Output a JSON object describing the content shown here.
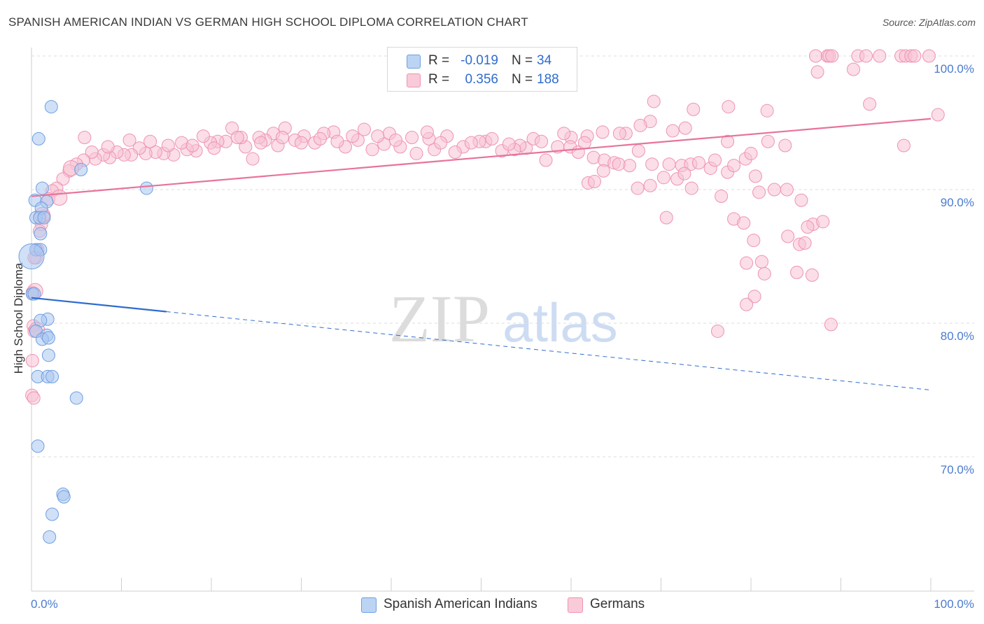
{
  "title": "SPANISH AMERICAN INDIAN VS GERMAN HIGH SCHOOL DIPLOMA CORRELATION CHART",
  "source": "Source: ZipAtlas.com",
  "watermark": {
    "zip": "ZIP",
    "atlas": "atlas"
  },
  "legend": {
    "r_label": "R =",
    "n_label": "N =",
    "rows": [
      {
        "name": "Spanish American Indians",
        "r": "-0.019",
        "n": "34",
        "color": "#8fb6ea"
      },
      {
        "name": "Germans",
        "r": "0.356",
        "n": "188",
        "color": "#f2a7c0"
      }
    ]
  },
  "colors": {
    "blue_fill": "#a9c7f0",
    "blue_stroke": "#6e9fe0",
    "blue_line": "#2f6ccf",
    "pink_fill": "#f7c3d3",
    "pink_stroke": "#ee93b1",
    "pink_line": "#e8739a",
    "grid": "#dddddd",
    "tick_text": "#4a7bd0"
  },
  "chart_data": {
    "type": "scatter",
    "title": "SPANISH AMERICAN INDIAN VS GERMAN HIGH SCHOOL DIPLOMA CORRELATION CHART",
    "xlabel": "",
    "ylabel": "High School Diploma",
    "xlim": [
      0,
      100
    ],
    "ylim": [
      60.5,
      101.5
    ],
    "x_tick_labels": {
      "left": "0.0%",
      "right": "100.0%"
    },
    "y_ticks": [
      {
        "value": 100,
        "label": "100.0%"
      },
      {
        "value": 90,
        "label": "90.0%"
      },
      {
        "value": 80,
        "label": "80.0%"
      },
      {
        "value": 70,
        "label": "70.0%"
      }
    ],
    "series": [
      {
        "name": "Spanish American Indians",
        "r": -0.019,
        "n": 34,
        "trend": {
          "x0": 0,
          "y0": 81.9,
          "x1": 100,
          "y1": 75.0,
          "solid_until_x": 15
        },
        "points": [
          [
            2.2,
            96.2,
            9
          ],
          [
            0.8,
            93.8,
            9
          ],
          [
            5.5,
            91.5,
            9
          ],
          [
            12.8,
            90.1,
            9
          ],
          [
            1.2,
            90.1,
            9
          ],
          [
            0.4,
            89.2,
            9
          ],
          [
            1.7,
            89.1,
            9
          ],
          [
            1.1,
            88.6,
            9
          ],
          [
            0.5,
            87.9,
            9
          ],
          [
            0.9,
            87.9,
            9
          ],
          [
            1.4,
            87.9,
            9
          ],
          [
            1.0,
            86.7,
            9
          ],
          [
            0.5,
            85.5,
            9
          ],
          [
            1.0,
            85.5,
            9
          ],
          [
            0.0,
            85.0,
            18
          ],
          [
            0.1,
            82.2,
            9
          ],
          [
            0.3,
            82.2,
            9
          ],
          [
            1.8,
            80.3,
            9
          ],
          [
            1.0,
            80.2,
            9
          ],
          [
            0.5,
            79.4,
            9
          ],
          [
            1.7,
            79.1,
            9
          ],
          [
            1.2,
            78.8,
            9
          ],
          [
            1.9,
            78.9,
            9
          ],
          [
            1.9,
            77.6,
            9
          ],
          [
            0.7,
            76.0,
            9
          ],
          [
            1.8,
            76.0,
            9
          ],
          [
            2.3,
            76.0,
            9
          ],
          [
            5.0,
            74.4,
            9
          ],
          [
            0.7,
            70.8,
            9
          ],
          [
            3.5,
            67.2,
            9
          ],
          [
            3.6,
            67.0,
            9
          ],
          [
            2.3,
            65.7,
            9
          ],
          [
            2.0,
            64.0,
            9
          ]
        ]
      },
      {
        "name": "Germans",
        "r": 0.356,
        "n": 188,
        "trend": {
          "x0": 0,
          "y0": 89.5,
          "x1": 100,
          "y1": 95.3
        },
        "points": [
          [
            87.2,
            100,
            9
          ],
          [
            88.5,
            100,
            9
          ],
          [
            88.7,
            100,
            9
          ],
          [
            89.0,
            100,
            9
          ],
          [
            91.9,
            100,
            9
          ],
          [
            92.8,
            100,
            9
          ],
          [
            94.3,
            100,
            9
          ],
          [
            96.7,
            100,
            9
          ],
          [
            97.2,
            100,
            9
          ],
          [
            97.8,
            100,
            9
          ],
          [
            98.2,
            100,
            9
          ],
          [
            99.8,
            100,
            9
          ],
          [
            87.4,
            98.8,
            9
          ],
          [
            91.4,
            99.0,
            9
          ],
          [
            93.2,
            96.4,
            9
          ],
          [
            100.8,
            95.6,
            9
          ],
          [
            69.2,
            96.6,
            9
          ],
          [
            73.6,
            96.0,
            9
          ],
          [
            77.5,
            96.2,
            9
          ],
          [
            81.8,
            95.9,
            9
          ],
          [
            68.8,
            95.1,
            9
          ],
          [
            67.7,
            94.8,
            9
          ],
          [
            66.1,
            94.2,
            9
          ],
          [
            71.3,
            94.4,
            9
          ],
          [
            72.7,
            94.6,
            9
          ],
          [
            77.4,
            93.6,
            9
          ],
          [
            81.9,
            93.6,
            9
          ],
          [
            83.8,
            93.3,
            9
          ],
          [
            97.0,
            93.3,
            9
          ],
          [
            65.4,
            94.2,
            9
          ],
          [
            63.5,
            94.3,
            9
          ],
          [
            61.8,
            94.0,
            9
          ],
          [
            60.0,
            93.9,
            9
          ],
          [
            59.2,
            94.2,
            9
          ],
          [
            58.5,
            93.2,
            9
          ],
          [
            57.2,
            92.2,
            9
          ],
          [
            55.0,
            93.1,
            9
          ],
          [
            54.3,
            93.3,
            9
          ],
          [
            53.7,
            93.0,
            9
          ],
          [
            52.3,
            92.9,
            9
          ],
          [
            50.5,
            93.6,
            9
          ],
          [
            49.8,
            93.6,
            9
          ],
          [
            48.0,
            93.2,
            9
          ],
          [
            47.1,
            92.8,
            9
          ],
          [
            46.2,
            94.0,
            9
          ],
          [
            44.8,
            93.0,
            9
          ],
          [
            44.2,
            93.8,
            9
          ],
          [
            42.8,
            92.7,
            9
          ],
          [
            41.0,
            93.2,
            9
          ],
          [
            39.8,
            94.2,
            9
          ],
          [
            39.2,
            93.4,
            9
          ],
          [
            37.9,
            93.0,
            9
          ],
          [
            37.0,
            94.5,
            9
          ],
          [
            36.3,
            93.7,
            9
          ],
          [
            34.9,
            93.2,
            9
          ],
          [
            33.6,
            94.3,
            9
          ],
          [
            32.5,
            94.2,
            9
          ],
          [
            31.5,
            93.5,
            9
          ],
          [
            30.3,
            94.0,
            9
          ],
          [
            29.3,
            93.7,
            9
          ],
          [
            28.2,
            94.6,
            9
          ],
          [
            27.4,
            93.3,
            9
          ],
          [
            26.9,
            94.2,
            9
          ],
          [
            26.0,
            93.7,
            9
          ],
          [
            25.3,
            93.9,
            9
          ],
          [
            24.6,
            92.3,
            9
          ],
          [
            23.8,
            93.2,
            9
          ],
          [
            23.3,
            93.9,
            9
          ],
          [
            22.3,
            94.6,
            9
          ],
          [
            21.6,
            93.6,
            9
          ],
          [
            20.7,
            93.6,
            9
          ],
          [
            19.9,
            93.5,
            9
          ],
          [
            19.1,
            94.0,
            9
          ],
          [
            18.3,
            92.9,
            9
          ],
          [
            17.3,
            93.0,
            9
          ],
          [
            16.7,
            93.5,
            9
          ],
          [
            15.8,
            92.6,
            9
          ],
          [
            14.7,
            92.7,
            9
          ],
          [
            13.8,
            92.8,
            9
          ],
          [
            12.7,
            92.7,
            9
          ],
          [
            12.0,
            93.1,
            9
          ],
          [
            11.1,
            92.6,
            9
          ],
          [
            10.3,
            92.6,
            9
          ],
          [
            9.5,
            92.8,
            9
          ],
          [
            8.7,
            92.4,
            9
          ],
          [
            8.0,
            92.6,
            9
          ],
          [
            7.1,
            92.3,
            9
          ],
          [
            6.7,
            92.8,
            9
          ],
          [
            5.8,
            92.2,
            9
          ],
          [
            5.0,
            91.9,
            9
          ],
          [
            4.2,
            91.4,
            9
          ],
          [
            3.5,
            90.8,
            9
          ],
          [
            2.8,
            90.1,
            9
          ],
          [
            2.3,
            89.9,
            9
          ],
          [
            1.9,
            89.3,
            9
          ],
          [
            1.4,
            88.0,
            9
          ],
          [
            1.1,
            87.4,
            9
          ],
          [
            0.9,
            86.9,
            9
          ],
          [
            0.7,
            85.5,
            9
          ],
          [
            0.5,
            84.9,
            9
          ],
          [
            0.3,
            84.9,
            9
          ],
          [
            0.1,
            82.3,
            9
          ],
          [
            0.2,
            79.8,
            9
          ],
          [
            0.3,
            79.4,
            9
          ],
          [
            0.1,
            77.2,
            9
          ],
          [
            0.05,
            74.6,
            9
          ],
          [
            0.25,
            74.4,
            9
          ],
          [
            5.9,
            93.9,
            9
          ],
          [
            8.5,
            93.2,
            9
          ],
          [
            10.9,
            93.7,
            9
          ],
          [
            13.2,
            93.6,
            9
          ],
          [
            15.2,
            93.3,
            9
          ],
          [
            17.9,
            93.3,
            9
          ],
          [
            20.3,
            93.1,
            9
          ],
          [
            22.9,
            93.9,
            9
          ],
          [
            25.5,
            93.5,
            9
          ],
          [
            27.9,
            93.9,
            9
          ],
          [
            30.0,
            93.5,
            9
          ],
          [
            32.1,
            93.8,
            9
          ],
          [
            34.0,
            93.6,
            9
          ],
          [
            35.7,
            94.0,
            9
          ],
          [
            38.5,
            94.0,
            9
          ],
          [
            40.5,
            93.7,
            9
          ],
          [
            42.3,
            93.9,
            9
          ],
          [
            44.0,
            94.3,
            9
          ],
          [
            45.5,
            93.5,
            9
          ],
          [
            48.9,
            93.5,
            9
          ],
          [
            51.2,
            93.8,
            9
          ],
          [
            53.1,
            93.4,
            9
          ],
          [
            55.8,
            93.8,
            9
          ],
          [
            56.7,
            93.6,
            9
          ],
          [
            59.9,
            93.2,
            9
          ],
          [
            60.8,
            92.8,
            9
          ],
          [
            61.5,
            93.5,
            9
          ],
          [
            62.5,
            92.4,
            9
          ],
          [
            63.7,
            92.2,
            9
          ],
          [
            64.8,
            92.0,
            9
          ],
          [
            66.5,
            91.8,
            9
          ],
          [
            67.5,
            92.9,
            9
          ],
          [
            69.0,
            91.9,
            9
          ],
          [
            70.9,
            91.9,
            9
          ],
          [
            72.3,
            91.8,
            9
          ],
          [
            73.3,
            91.9,
            9
          ],
          [
            74.2,
            92.0,
            9
          ],
          [
            75.5,
            91.6,
            9
          ],
          [
            76.0,
            92.2,
            9
          ],
          [
            77.4,
            91.3,
            9
          ],
          [
            78.1,
            91.8,
            9
          ],
          [
            79.4,
            92.3,
            9
          ],
          [
            80.0,
            92.7,
            9
          ],
          [
            80.5,
            91.0,
            9
          ],
          [
            61.9,
            90.5,
            9
          ],
          [
            62.6,
            90.6,
            9
          ],
          [
            73.4,
            90.1,
            9
          ],
          [
            76.7,
            89.5,
            9
          ],
          [
            80.9,
            89.8,
            9
          ],
          [
            82.6,
            90.0,
            9
          ],
          [
            84.0,
            90.0,
            9
          ],
          [
            85.6,
            89.2,
            9
          ],
          [
            86.9,
            87.4,
            9
          ],
          [
            88.0,
            87.6,
            9
          ],
          [
            70.6,
            87.9,
            9
          ],
          [
            78.1,
            87.8,
            9
          ],
          [
            79.2,
            87.5,
            9
          ],
          [
            84.1,
            86.5,
            9
          ],
          [
            80.3,
            86.2,
            9
          ],
          [
            86.3,
            87.2,
            9
          ],
          [
            81.2,
            84.6,
            9
          ],
          [
            85.4,
            85.9,
            9
          ],
          [
            86.0,
            86.0,
            9
          ],
          [
            79.5,
            84.5,
            9
          ],
          [
            85.1,
            83.8,
            9
          ],
          [
            86.8,
            83.6,
            9
          ],
          [
            81.5,
            83.7,
            9
          ],
          [
            80.4,
            82.0,
            9
          ],
          [
            79.5,
            81.4,
            9
          ],
          [
            76.3,
            79.4,
            9
          ],
          [
            88.9,
            79.9,
            9
          ],
          [
            63.6,
            91.4,
            9
          ],
          [
            65.3,
            91.9,
            9
          ],
          [
            67.4,
            90.1,
            9
          ],
          [
            68.8,
            90.3,
            9
          ],
          [
            70.3,
            90.9,
            9
          ],
          [
            71.8,
            90.8,
            9
          ],
          [
            72.6,
            91.2,
            9
          ],
          [
            0.4,
            82.4,
            11
          ],
          [
            0.6,
            79.5,
            11
          ],
          [
            1.2,
            88.1,
            11
          ],
          [
            3.1,
            89.4,
            11
          ],
          [
            4.4,
            91.6,
            11
          ]
        ]
      }
    ]
  },
  "axes": {
    "x_left_label": "0.0%",
    "x_right_label": "100.0%",
    "ylabel": "High School Diploma"
  }
}
